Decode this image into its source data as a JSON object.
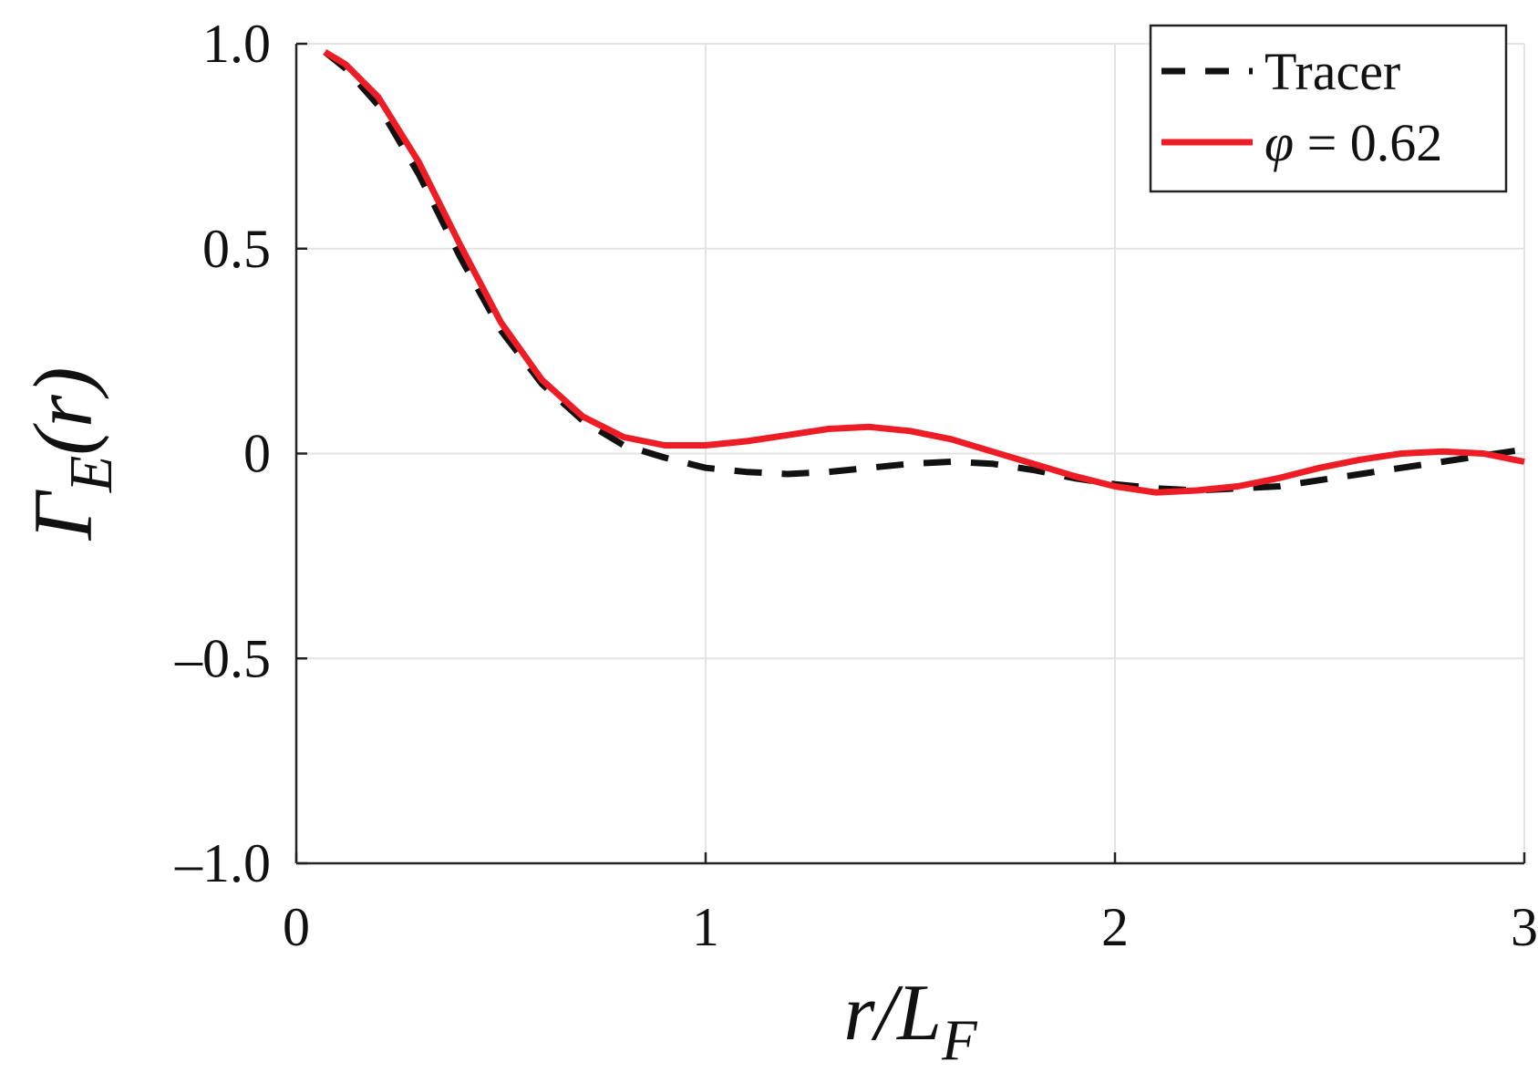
{
  "chart_data": {
    "type": "line",
    "title": "",
    "xlabel": "r/L_F",
    "ylabel": "Γ_E(r)",
    "xlim": [
      0,
      3
    ],
    "ylim": [
      -1.0,
      1.0
    ],
    "x_ticks": [
      "0",
      "1",
      "2",
      "3"
    ],
    "y_ticks": [
      "1.0",
      "0.5",
      "0",
      "–0.5",
      "–1.0"
    ],
    "grid": true,
    "legend_position": "top-right",
    "series": [
      {
        "name": "Tracer",
        "color": "#111111",
        "style": "dashed",
        "x": [
          0.07,
          0.12,
          0.2,
          0.3,
          0.4,
          0.5,
          0.6,
          0.7,
          0.8,
          0.9,
          1.0,
          1.1,
          1.2,
          1.3,
          1.4,
          1.5,
          1.6,
          1.7,
          1.8,
          1.9,
          2.0,
          2.1,
          2.2,
          2.3,
          2.4,
          2.5,
          2.6,
          2.7,
          2.8,
          2.9,
          3.0
        ],
        "y": [
          0.98,
          0.94,
          0.85,
          0.68,
          0.48,
          0.3,
          0.17,
          0.08,
          0.02,
          -0.01,
          -0.035,
          -0.045,
          -0.05,
          -0.045,
          -0.035,
          -0.025,
          -0.02,
          -0.025,
          -0.04,
          -0.06,
          -0.075,
          -0.085,
          -0.09,
          -0.085,
          -0.08,
          -0.065,
          -0.05,
          -0.035,
          -0.02,
          -0.005,
          0.01
        ]
      },
      {
        "name": "φ = 0.62",
        "color": "#ee1c25",
        "style": "solid",
        "x": [
          0.07,
          0.12,
          0.2,
          0.3,
          0.4,
          0.5,
          0.6,
          0.7,
          0.8,
          0.9,
          1.0,
          1.1,
          1.2,
          1.3,
          1.4,
          1.5,
          1.6,
          1.7,
          1.8,
          1.9,
          2.0,
          2.1,
          2.2,
          2.3,
          2.4,
          2.5,
          2.6,
          2.7,
          2.8,
          2.9,
          3.0
        ],
        "y": [
          0.98,
          0.95,
          0.87,
          0.71,
          0.51,
          0.32,
          0.18,
          0.09,
          0.04,
          0.02,
          0.02,
          0.03,
          0.045,
          0.06,
          0.065,
          0.055,
          0.035,
          0.005,
          -0.025,
          -0.055,
          -0.08,
          -0.095,
          -0.09,
          -0.08,
          -0.06,
          -0.035,
          -0.015,
          0.0,
          0.005,
          0.0,
          -0.02
        ]
      }
    ]
  }
}
